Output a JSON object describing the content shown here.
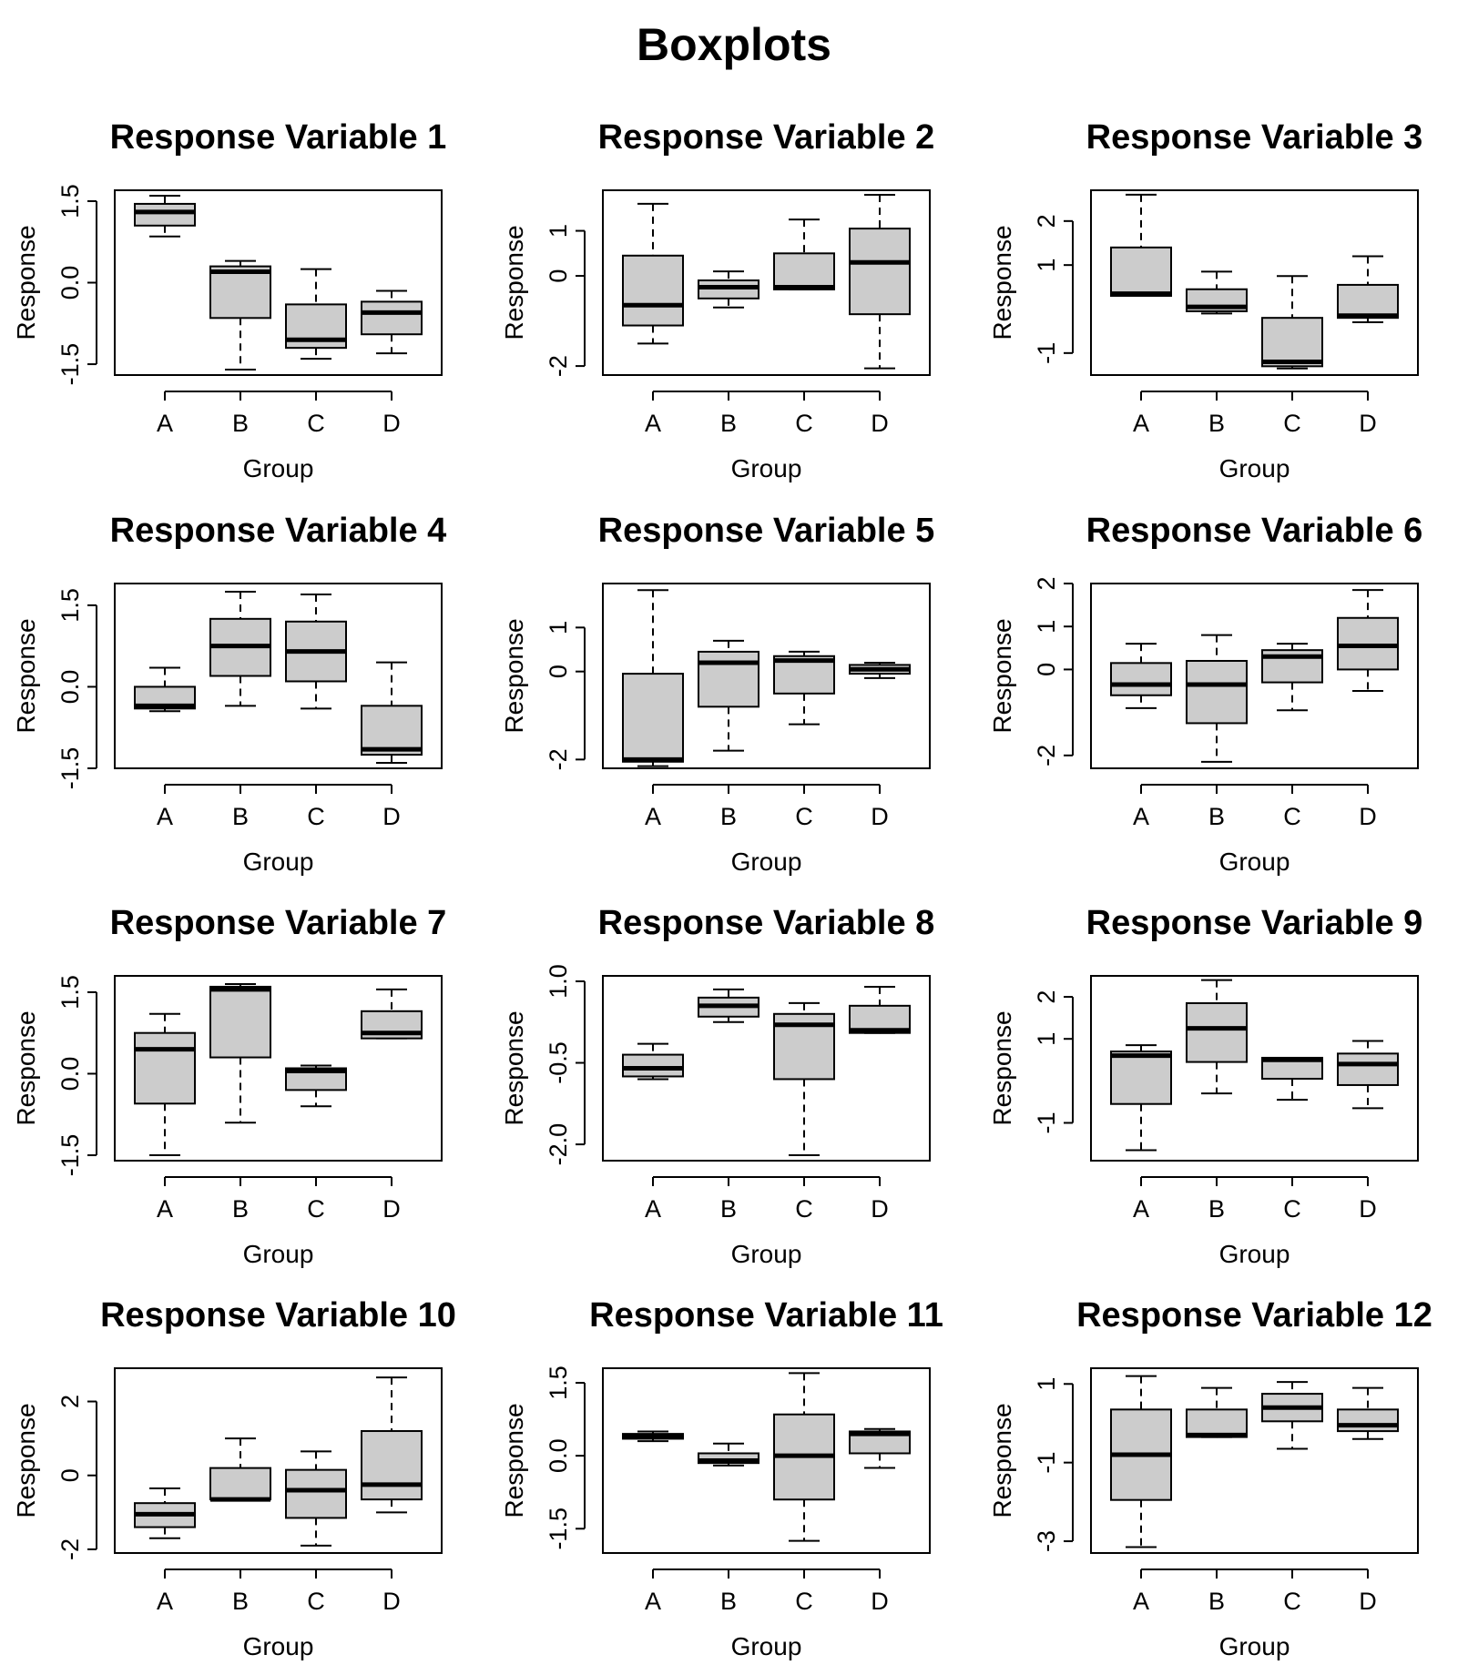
{
  "title": "Boxplots",
  "chart_data": [
    {
      "type": "boxplot",
      "title": "Response Variable 1",
      "xlabel": "Group",
      "ylabel": "Response",
      "categories": [
        "A",
        "B",
        "C",
        "D"
      ],
      "ylim": [
        -1.7,
        1.7
      ],
      "yticks": [
        -1.5,
        0,
        1.5
      ],
      "ytick_labels": [
        "-1.5",
        "0.0",
        "1.5"
      ],
      "boxes": [
        {
          "min": 0.85,
          "q1": 1.05,
          "median": 1.3,
          "q3": 1.45,
          "max": 1.6
        },
        {
          "min": -1.6,
          "q1": -0.65,
          "median": 0.2,
          "q3": 0.3,
          "max": 0.4
        },
        {
          "min": -1.4,
          "q1": -1.2,
          "median": -1.05,
          "q3": -0.4,
          "max": 0.25
        },
        {
          "min": -1.3,
          "q1": -0.95,
          "median": -0.55,
          "q3": -0.35,
          "max": -0.15
        }
      ]
    },
    {
      "type": "boxplot",
      "title": "Response Variable 2",
      "xlabel": "Group",
      "ylabel": "Response",
      "categories": [
        "A",
        "B",
        "C",
        "D"
      ],
      "ylim": [
        -2.2,
        1.9
      ],
      "yticks": [
        -2,
        0,
        1
      ],
      "ytick_labels": [
        "-2",
        "0",
        "1"
      ],
      "boxes": [
        {
          "min": -1.5,
          "q1": -1.1,
          "median": -0.65,
          "q3": 0.45,
          "max": 1.6
        },
        {
          "min": -0.7,
          "q1": -0.5,
          "median": -0.25,
          "q3": -0.1,
          "max": 0.1
        },
        {
          "min": -0.3,
          "q1": -0.3,
          "median": -0.25,
          "q3": 0.5,
          "max": 1.25
        },
        {
          "min": -2.05,
          "q1": -0.85,
          "median": 0.3,
          "q3": 1.05,
          "max": 1.8
        }
      ]
    },
    {
      "type": "boxplot",
      "title": "Response Variable 3",
      "xlabel": "Group",
      "ylabel": "Response",
      "categories": [
        "A",
        "B",
        "C",
        "D"
      ],
      "ylim": [
        -1.5,
        2.7
      ],
      "yticks": [
        -1,
        1,
        2
      ],
      "ytick_labels": [
        "-1",
        "1",
        "2"
      ],
      "boxes": [
        {
          "min": 0.3,
          "q1": 0.3,
          "median": 0.35,
          "q3": 1.4,
          "max": 2.6
        },
        {
          "min": -0.1,
          "q1": -0.05,
          "median": 0.05,
          "q3": 0.45,
          "max": 0.85
        },
        {
          "min": -1.35,
          "q1": -1.3,
          "median": -1.2,
          "q3": -0.2,
          "max": 0.75
        },
        {
          "min": -0.3,
          "q1": -0.2,
          "median": -0.15,
          "q3": 0.55,
          "max": 1.2
        }
      ]
    },
    {
      "type": "boxplot",
      "title": "Response Variable 4",
      "xlabel": "Group",
      "ylabel": "Response",
      "categories": [
        "A",
        "B",
        "C",
        "D"
      ],
      "ylim": [
        -1.5,
        1.9
      ],
      "yticks": [
        -1.5,
        0,
        1.5
      ],
      "ytick_labels": [
        "-1.5",
        "0.0",
        "1.5"
      ],
      "boxes": [
        {
          "min": -0.45,
          "q1": -0.4,
          "median": -0.35,
          "q3": 0.0,
          "max": 0.35
        },
        {
          "min": -0.35,
          "q1": 0.2,
          "median": 0.75,
          "q3": 1.25,
          "max": 1.75
        },
        {
          "min": -0.4,
          "q1": 0.1,
          "median": 0.65,
          "q3": 1.2,
          "max": 1.7
        },
        {
          "min": -1.4,
          "q1": -1.25,
          "median": -1.15,
          "q3": -0.35,
          "max": 0.45
        }
      ]
    },
    {
      "type": "boxplot",
      "title": "Response Variable 5",
      "xlabel": "Group",
      "ylabel": "Response",
      "categories": [
        "A",
        "B",
        "C",
        "D"
      ],
      "ylim": [
        -2.2,
        2.0
      ],
      "yticks": [
        -2,
        0,
        1
      ],
      "ytick_labels": [
        "-2",
        "0",
        "1"
      ],
      "boxes": [
        {
          "min": -2.15,
          "q1": -2.05,
          "median": -2.0,
          "q3": -0.05,
          "max": 1.85
        },
        {
          "min": -1.8,
          "q1": -0.8,
          "median": 0.2,
          "q3": 0.45,
          "max": 0.7
        },
        {
          "min": -1.2,
          "q1": -0.5,
          "median": 0.25,
          "q3": 0.35,
          "max": 0.45
        },
        {
          "min": -0.15,
          "q1": -0.05,
          "median": 0.05,
          "q3": 0.15,
          "max": 0.2
        }
      ]
    },
    {
      "type": "boxplot",
      "title": "Response Variable 6",
      "xlabel": "Group",
      "ylabel": "Response",
      "categories": [
        "A",
        "B",
        "C",
        "D"
      ],
      "ylim": [
        -2.3,
        2.0
      ],
      "yticks": [
        -2,
        0,
        1,
        2
      ],
      "ytick_labels": [
        "-2",
        "0",
        "1",
        "2"
      ],
      "boxes": [
        {
          "min": -0.9,
          "q1": -0.6,
          "median": -0.35,
          "q3": 0.15,
          "max": 0.6
        },
        {
          "min": -2.15,
          "q1": -1.25,
          "median": -0.35,
          "q3": 0.2,
          "max": 0.8
        },
        {
          "min": -0.95,
          "q1": -0.3,
          "median": 0.3,
          "q3": 0.45,
          "max": 0.6
        },
        {
          "min": -0.5,
          "q1": 0.0,
          "median": 0.55,
          "q3": 1.2,
          "max": 1.85
        }
      ]
    },
    {
      "type": "boxplot",
      "title": "Response Variable 7",
      "xlabel": "Group",
      "ylabel": "Response",
      "categories": [
        "A",
        "B",
        "C",
        "D"
      ],
      "ylim": [
        -1.6,
        1.8
      ],
      "yticks": [
        -1.5,
        0,
        1.5
      ],
      "ytick_labels": [
        "-1.5",
        "0.0",
        "1.5"
      ],
      "boxes": [
        {
          "min": -1.5,
          "q1": -0.55,
          "median": 0.45,
          "q3": 0.75,
          "max": 1.1
        },
        {
          "min": -0.9,
          "q1": 0.3,
          "median": 1.55,
          "q3": 1.6,
          "max": 1.65
        },
        {
          "min": -0.6,
          "q1": -0.3,
          "median": 0.05,
          "q3": 0.1,
          "max": 0.15
        },
        {
          "min": 0.65,
          "q1": 0.65,
          "median": 0.75,
          "q3": 1.15,
          "max": 1.55
        }
      ]
    },
    {
      "type": "boxplot",
      "title": "Response Variable 8",
      "xlabel": "Group",
      "ylabel": "Response",
      "categories": [
        "A",
        "B",
        "C",
        "D"
      ],
      "ylim": [
        -2.3,
        1.1
      ],
      "yticks": [
        -2,
        -0.5,
        1
      ],
      "ytick_labels": [
        "-2.0",
        "-0.5",
        "1.0"
      ],
      "boxes": [
        {
          "min": -0.8,
          "q1": -0.75,
          "median": -0.6,
          "q3": -0.35,
          "max": -0.15
        },
        {
          "min": 0.25,
          "q1": 0.35,
          "median": 0.55,
          "q3": 0.7,
          "max": 0.85
        },
        {
          "min": -2.2,
          "q1": -0.8,
          "median": 0.2,
          "q3": 0.4,
          "max": 0.6
        },
        {
          "min": 0.05,
          "q1": 0.05,
          "median": 0.1,
          "q3": 0.55,
          "max": 0.9
        }
      ]
    },
    {
      "type": "boxplot",
      "title": "Response Variable 9",
      "xlabel": "Group",
      "ylabel": "Response",
      "categories": [
        "A",
        "B",
        "C",
        "D"
      ],
      "ylim": [
        -1.9,
        2.5
      ],
      "yticks": [
        -1,
        1,
        2
      ],
      "ytick_labels": [
        "-1",
        "1",
        "2"
      ],
      "boxes": [
        {
          "min": -1.65,
          "q1": -0.55,
          "median": 0.6,
          "q3": 0.7,
          "max": 0.85
        },
        {
          "min": -0.3,
          "q1": 0.45,
          "median": 1.25,
          "q3": 1.85,
          "max": 2.4
        },
        {
          "min": -0.45,
          "q1": 0.05,
          "median": 0.5,
          "q3": 0.55,
          "max": 0.55
        },
        {
          "min": -0.65,
          "q1": -0.1,
          "median": 0.4,
          "q3": 0.65,
          "max": 0.95
        }
      ]
    },
    {
      "type": "boxplot",
      "title": "Response Variable 10",
      "xlabel": "Group",
      "ylabel": "Response",
      "categories": [
        "A",
        "B",
        "C",
        "D"
      ],
      "ylim": [
        -2.1,
        2.9
      ],
      "yticks": [
        -2,
        0,
        2
      ],
      "ytick_labels": [
        "-2",
        "0",
        "2"
      ],
      "boxes": [
        {
          "min": -1.7,
          "q1": -1.4,
          "median": -1.05,
          "q3": -0.75,
          "max": -0.35
        },
        {
          "min": -0.65,
          "q1": -0.65,
          "median": -0.65,
          "q3": 0.2,
          "max": 1.0
        },
        {
          "min": -1.9,
          "q1": -1.15,
          "median": -0.4,
          "q3": 0.15,
          "max": 0.65
        },
        {
          "min": -1.0,
          "q1": -0.65,
          "median": -0.25,
          "q3": 1.2,
          "max": 2.65
        }
      ]
    },
    {
      "type": "boxplot",
      "title": "Response Variable 11",
      "xlabel": "Group",
      "ylabel": "Response",
      "categories": [
        "A",
        "B",
        "C",
        "D"
      ],
      "ylim": [
        -2.0,
        1.8
      ],
      "yticks": [
        -1.5,
        0,
        1.5
      ],
      "ytick_labels": [
        "-1.5",
        "0.0",
        "1.5"
      ],
      "boxes": [
        {
          "min": 0.3,
          "q1": 0.35,
          "median": 0.4,
          "q3": 0.45,
          "max": 0.5
        },
        {
          "min": -0.2,
          "q1": -0.15,
          "median": -0.1,
          "q3": 0.05,
          "max": 0.25
        },
        {
          "min": -1.75,
          "q1": -0.9,
          "median": 0.0,
          "q3": 0.85,
          "max": 1.7
        },
        {
          "min": -0.25,
          "q1": 0.05,
          "median": 0.45,
          "q3": 0.5,
          "max": 0.55
        }
      ]
    },
    {
      "type": "boxplot",
      "title": "Response Variable 12",
      "xlabel": "Group",
      "ylabel": "Response",
      "categories": [
        "A",
        "B",
        "C",
        "D"
      ],
      "ylim": [
        -3.3,
        1.4
      ],
      "yticks": [
        -3,
        -1,
        1
      ],
      "ytick_labels": [
        "-3",
        "-1",
        "1"
      ],
      "boxes": [
        {
          "min": -3.15,
          "q1": -1.95,
          "median": -0.8,
          "q3": 0.35,
          "max": 1.2
        },
        {
          "min": -0.35,
          "q1": -0.35,
          "median": -0.3,
          "q3": 0.35,
          "max": 0.9
        },
        {
          "min": -0.65,
          "q1": 0.05,
          "median": 0.4,
          "q3": 0.75,
          "max": 1.05
        },
        {
          "min": -0.4,
          "q1": -0.2,
          "median": -0.05,
          "q3": 0.35,
          "max": 0.9
        }
      ]
    }
  ]
}
